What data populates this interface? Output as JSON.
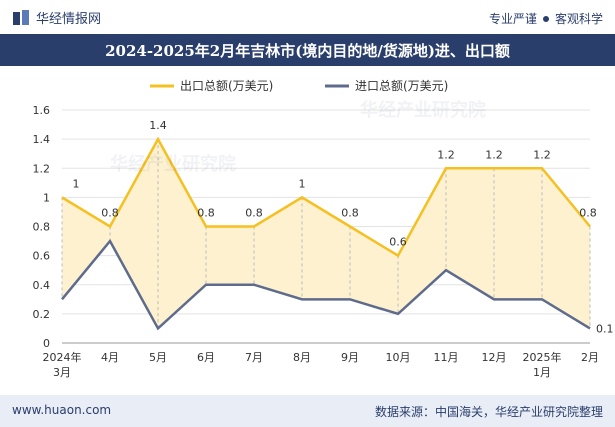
{
  "header": {
    "brand": "华经情报网",
    "tagline_left": "专业严谨",
    "tagline_right": "客观科学"
  },
  "footer": {
    "website": "www.huaon.com",
    "source": "数据来源：中国海关，华经产业研究院整理"
  },
  "colors": {
    "header_bg": "#2a3e6c",
    "export_line": "#f5c021",
    "import_line": "#5e6b8c",
    "fill": "#fdf1cf"
  },
  "chart_data": {
    "type": "line",
    "title": "2024-2025年2月年吉林市(境内目的地/货源地)进、出口额",
    "categories": [
      "2024年\n3月",
      "4月",
      "5月",
      "6月",
      "7月",
      "8月",
      "9月",
      "10月",
      "11月",
      "12月",
      "2025年\n1月",
      "2月"
    ],
    "series": [
      {
        "name": "出口总额(万美元)",
        "values": [
          1,
          0.8,
          1.4,
          0.8,
          0.8,
          1,
          0.8,
          0.6,
          1.2,
          1.2,
          1.2,
          0.8
        ]
      },
      {
        "name": "进口总额(万美元)",
        "values": [
          0.3,
          0.7,
          0.1,
          0.4,
          0.4,
          0.3,
          0.3,
          0.2,
          0.5,
          0.3,
          0.3,
          0.1
        ]
      }
    ],
    "data_labels": {
      "series": "出口总额(万美元)",
      "labels": [
        "1",
        "0.8",
        "1.4",
        "0.8",
        "0.8",
        "1",
        "0.8",
        "0.6",
        "1.2",
        "1.2",
        "1.2",
        "0.8"
      ]
    },
    "extra_labels": [
      {
        "series": "进口总额(万美元)",
        "index": 11,
        "label": "0.1"
      }
    ],
    "ylim": [
      0,
      1.6
    ],
    "yticks": [
      "0",
      "0.2",
      "0.4",
      "0.6",
      "0.8",
      "1",
      "1.2",
      "1.4",
      "1.6"
    ],
    "xlabel": "",
    "ylabel": "",
    "grid": true,
    "legend_position": "top-center"
  }
}
